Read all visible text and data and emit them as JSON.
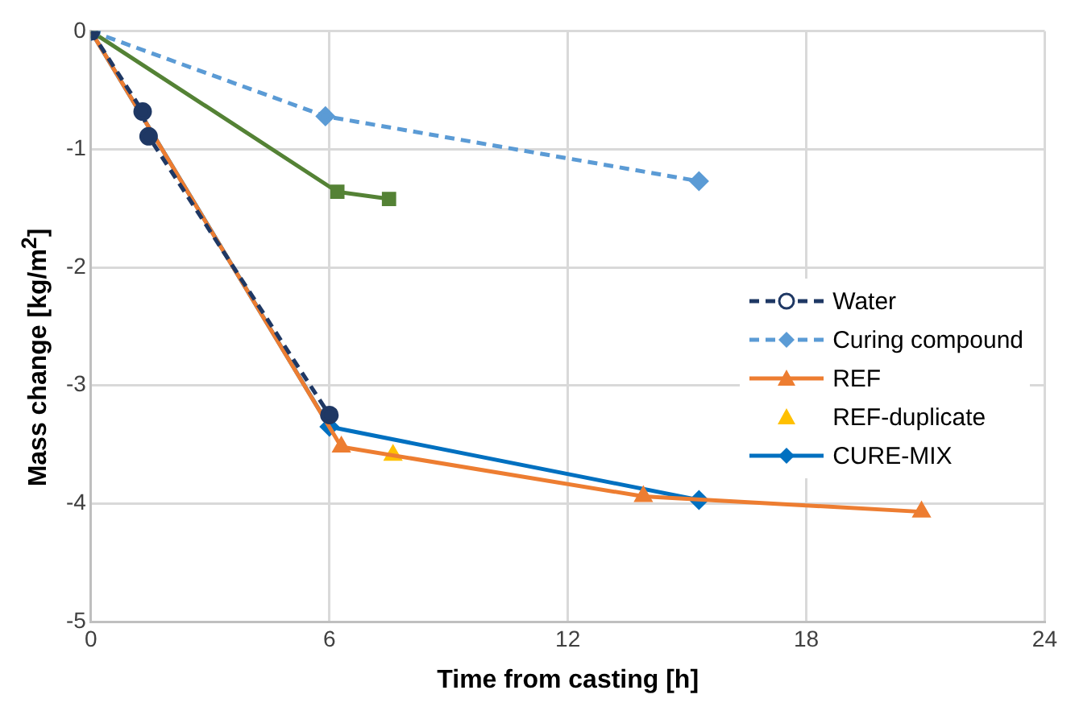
{
  "chart_data": {
    "type": "line",
    "xlabel": "Time from casting [h]",
    "ylabel": "Mass change [kg/m$^{2}$]",
    "xlim": [
      0,
      24
    ],
    "xticks": [
      0,
      6,
      12,
      18,
      24
    ],
    "ylim": [
      -5,
      0
    ],
    "yticks": [
      -5,
      -4,
      -3,
      -2,
      -1,
      0
    ],
    "grid": true,
    "legend": "right",
    "series": [
      {
        "name": "Water",
        "color": "#1f3864",
        "marker": "circle",
        "line_style": "dashed",
        "x": [
          0,
          1.3,
          1.45,
          6
        ],
        "values": [
          0,
          -0.68,
          -0.89,
          -3.25
        ]
      },
      {
        "name": "Curing compound",
        "color": "#5b9bd5",
        "marker": "diamond",
        "line_style": "dashed",
        "x": [
          0,
          5.9,
          15.3
        ],
        "values": [
          0,
          -0.72,
          -1.27
        ]
      },
      {
        "color": "#548235",
        "marker": "square",
        "line_style": "solid",
        "x": [
          0,
          6.2,
          7.5
        ],
        "values": [
          0,
          -1.36,
          -1.42
        ]
      },
      {
        "name": "REF",
        "color": "#ed7d31",
        "marker": "triangle",
        "line_style": "solid",
        "x": [
          0,
          6.3,
          13.9,
          20.9
        ],
        "values": [
          0,
          -3.52,
          -3.94,
          -4.07
        ]
      },
      {
        "name": "REF-duplicate",
        "type": "scatter",
        "color": "#ffc000",
        "marker": "triangle",
        "x": [
          0,
          7.6
        ],
        "values": [
          0,
          -3.59
        ]
      },
      {
        "name": "CURE-MIX",
        "color": "#0070c0",
        "marker": "diamond",
        "line_style": "solid",
        "x": [
          0,
          6,
          15.3
        ],
        "values": [
          0,
          -3.35,
          -3.97
        ]
      }
    ]
  }
}
